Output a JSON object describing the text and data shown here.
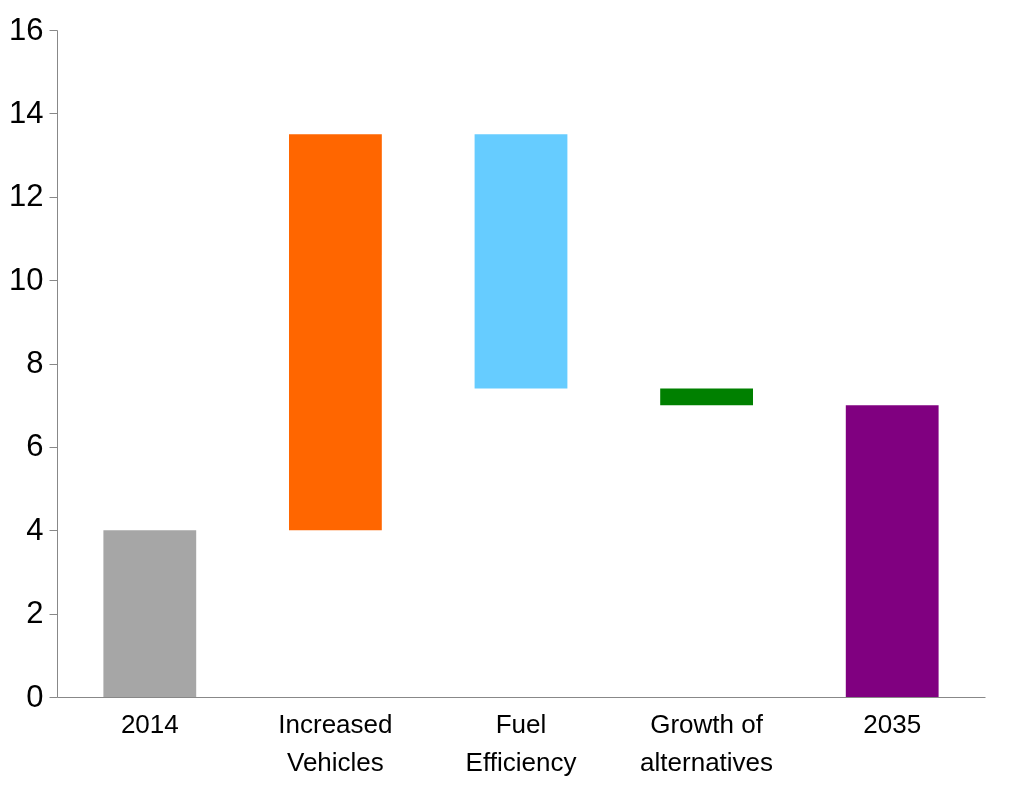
{
  "chart_data": {
    "type": "bar",
    "categories": [
      "2014",
      "Increased Vehicles",
      "Fuel Efficiency",
      "Growth of alternatives",
      "2035"
    ],
    "values": [
      4,
      9.5,
      -6.1,
      -0.4,
      7
    ],
    "base": [
      0,
      4,
      13.5,
      7.4,
      0
    ],
    "colors": [
      "#a6a6a6",
      "#ff6600",
      "#66ccff",
      "#008000",
      "#800080"
    ],
    "ylim": [
      0,
      16
    ],
    "yticks": [
      0,
      2,
      4,
      6,
      8,
      10,
      12,
      14,
      16
    ],
    "grid": false
  }
}
